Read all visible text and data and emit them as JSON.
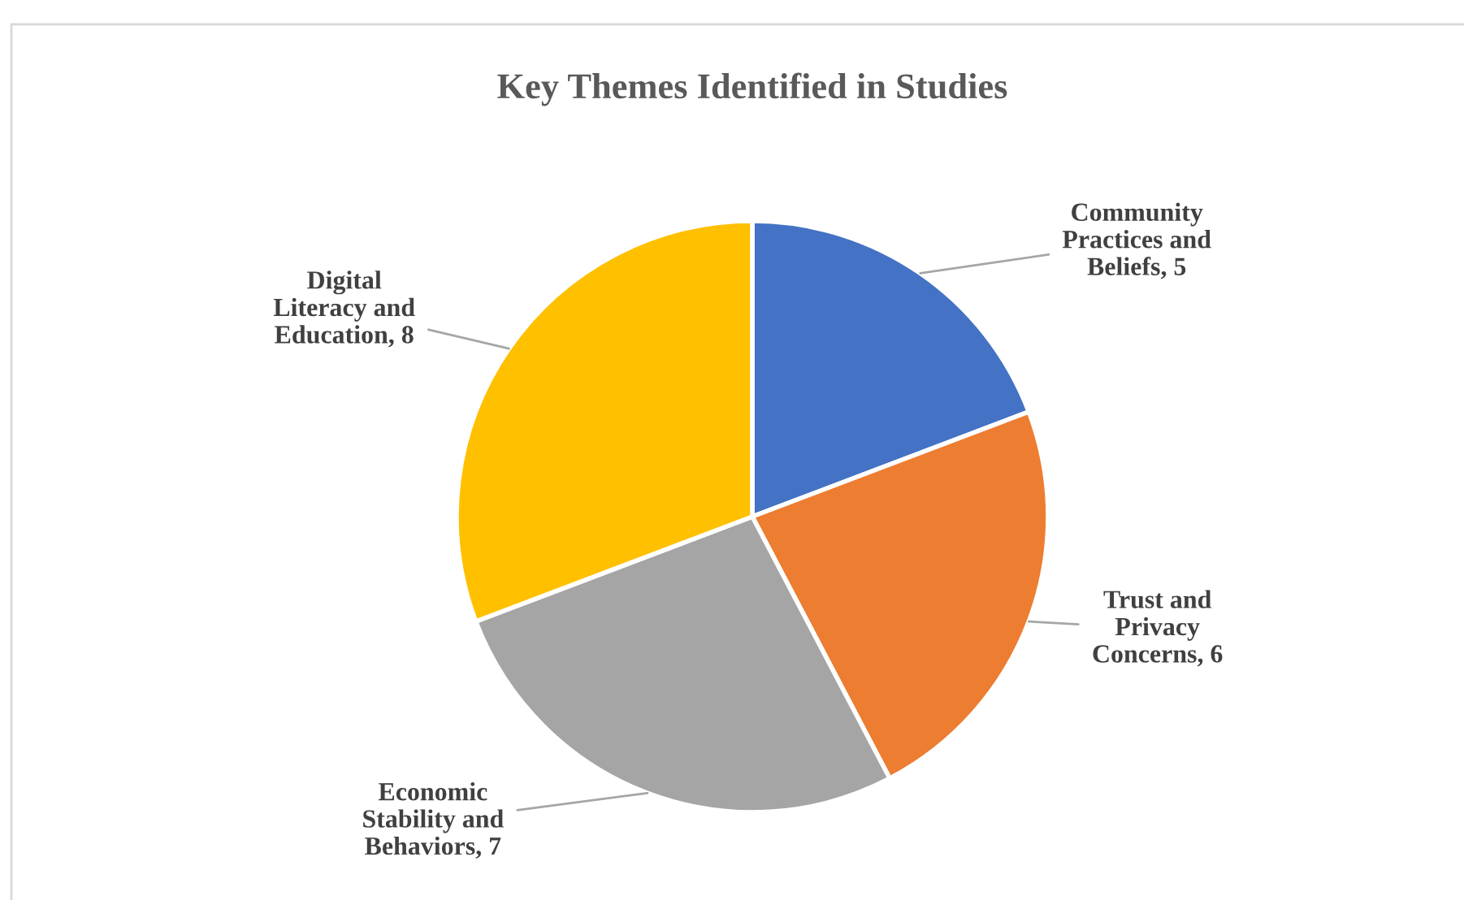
{
  "chart_data": {
    "type": "pie",
    "title": "Key Themes Identified in Studies",
    "categories": [
      "Community\nPractices and\nBeliefs, 5",
      "Trust and\nPrivacy\nConcerns, 6",
      "Economic\nStability and\nBehaviors, 7",
      "Digital\nLiteracy and\nEducation, 8"
    ],
    "values": [
      5,
      6,
      7,
      8
    ],
    "colors": [
      "#4472c4",
      "#ed7d31",
      "#a5a5a5",
      "#ffc000"
    ],
    "legend": false
  }
}
